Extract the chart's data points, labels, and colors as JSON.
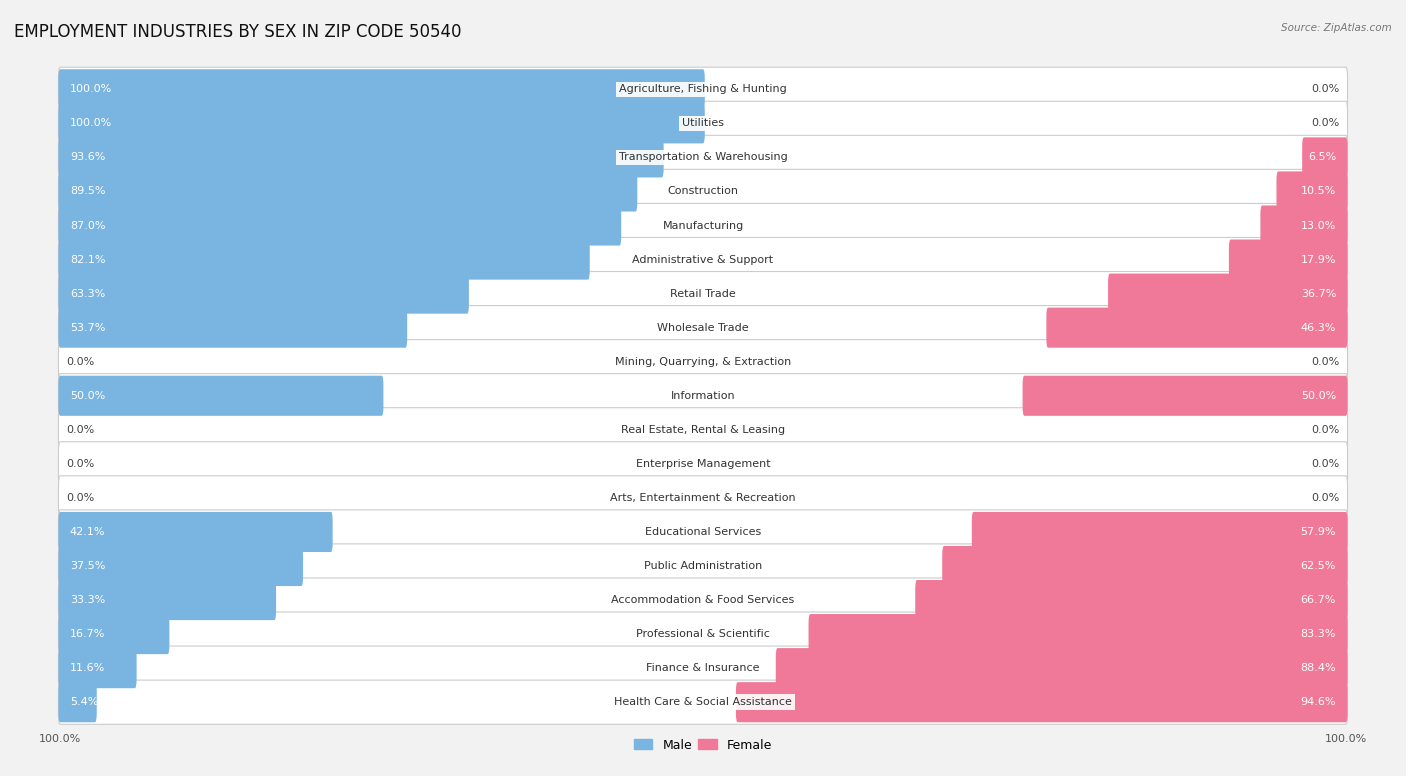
{
  "title": "EMPLOYMENT INDUSTRIES BY SEX IN ZIP CODE 50540",
  "source": "Source: ZipAtlas.com",
  "industries": [
    "Agriculture, Fishing & Hunting",
    "Utilities",
    "Transportation & Warehousing",
    "Construction",
    "Manufacturing",
    "Administrative & Support",
    "Retail Trade",
    "Wholesale Trade",
    "Mining, Quarrying, & Extraction",
    "Information",
    "Real Estate, Rental & Leasing",
    "Enterprise Management",
    "Arts, Entertainment & Recreation",
    "Educational Services",
    "Public Administration",
    "Accommodation & Food Services",
    "Professional & Scientific",
    "Finance & Insurance",
    "Health Care & Social Assistance"
  ],
  "male_pct": [
    100.0,
    100.0,
    93.6,
    89.5,
    87.0,
    82.1,
    63.3,
    53.7,
    0.0,
    50.0,
    0.0,
    0.0,
    0.0,
    42.1,
    37.5,
    33.3,
    16.7,
    11.6,
    5.4
  ],
  "female_pct": [
    0.0,
    0.0,
    6.5,
    10.5,
    13.0,
    17.9,
    36.7,
    46.3,
    0.0,
    50.0,
    0.0,
    0.0,
    0.0,
    57.9,
    62.5,
    66.7,
    83.3,
    88.4,
    94.6
  ],
  "male_color": "#7ab4e0",
  "female_color": "#f07898",
  "bg_color": "#f2f2f2",
  "row_bg_color": "#e4e4e4",
  "title_fontsize": 12,
  "label_fontsize": 8.0,
  "pct_fontsize": 8.0,
  "axis_label_fontsize": 8,
  "legend_fontsize": 9
}
